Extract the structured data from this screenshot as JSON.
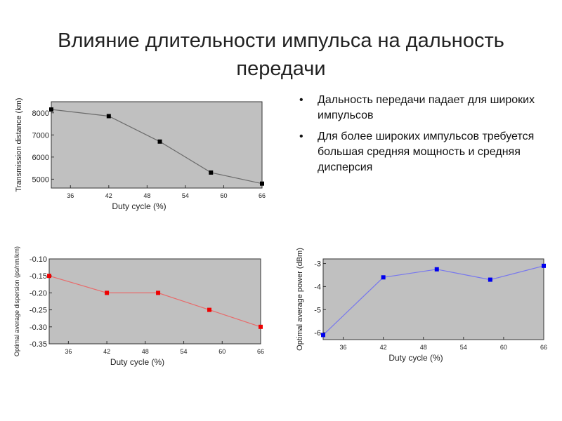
{
  "slide": {
    "title_line1": "Влияние длительности импульса на дальность",
    "title_line2": "передачи",
    "bullets": [
      "Дальность передачи падает для широких импульсов",
      "Для более широких импульсов требуется большая средняя мощность и средняя дисперсия"
    ],
    "bullet_glyph": "•"
  },
  "chart_data": [
    {
      "type": "line",
      "xlabel": "Duty cycle (%)",
      "ylabel": "Transmission distance (km)",
      "x": [
        33,
        42,
        50,
        58,
        66
      ],
      "series": [
        {
          "values": [
            8150,
            7850,
            6700,
            5300,
            4800
          ]
        }
      ],
      "xticks": [
        36,
        42,
        48,
        54,
        60,
        66
      ],
      "yticks": [
        5000,
        6000,
        7000,
        8000
      ],
      "xlim": [
        33,
        66
      ],
      "ylim": [
        4600,
        8500
      ],
      "line_color": "#6b6b6b",
      "marker_color": "#000000",
      "plot_bg": "#c0c0c0",
      "grid": false
    },
    {
      "type": "line",
      "xlabel": "Duty cycle (%)",
      "ylabel": "Optimal average dispersion (ps/nm/km)",
      "x": [
        33,
        42,
        50,
        58,
        66
      ],
      "series": [
        {
          "values": [
            -0.15,
            -0.2,
            -0.2,
            -0.25,
            -0.3
          ]
        }
      ],
      "xticks": [
        36,
        42,
        48,
        54,
        60,
        66
      ],
      "yticks": [
        -0.35,
        -0.3,
        -0.25,
        -0.2,
        -0.15,
        -0.1
      ],
      "ytick_labels": [
        "-0.35",
        "-0.30",
        "-0.25",
        "-0.20",
        "-0.15",
        "-0.10"
      ],
      "xlim": [
        33,
        66
      ],
      "ylim": [
        -0.35,
        -0.1
      ],
      "line_color": "#e86a6a",
      "marker_color": "#ee0000",
      "plot_bg": "#c0c0c0",
      "grid": false
    },
    {
      "type": "line",
      "xlabel": "Duty cycle (%)",
      "ylabel": "Optimal average power (dBm)",
      "x": [
        33,
        42,
        50,
        58,
        66
      ],
      "series": [
        {
          "values": [
            -6.1,
            -3.6,
            -3.25,
            -3.7,
            -3.1
          ]
        }
      ],
      "xticks": [
        36,
        42,
        48,
        54,
        60,
        66
      ],
      "yticks": [
        -6,
        -5,
        -4,
        -3
      ],
      "xlim": [
        33,
        66
      ],
      "ylim": [
        -6.3,
        -2.8
      ],
      "line_color": "#7777ee",
      "marker_color": "#0000ee",
      "plot_bg": "#c0c0c0",
      "grid": false
    }
  ]
}
